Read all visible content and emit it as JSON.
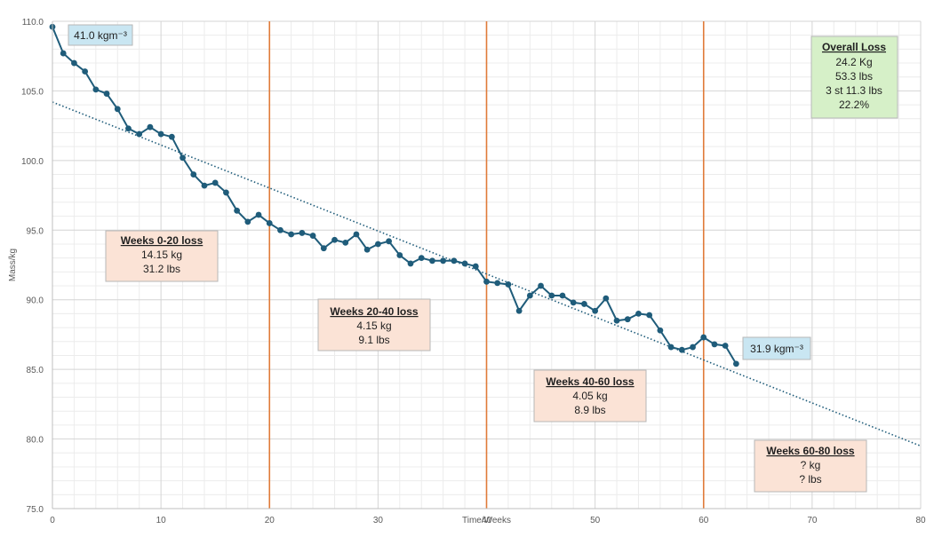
{
  "chart_data": {
    "type": "line",
    "title": "",
    "xlabel": "Time/Weeks",
    "ylabel": "Mass/kg",
    "xlim": [
      0,
      80
    ],
    "ylim": [
      75,
      110
    ],
    "x_ticks": [
      0,
      10,
      20,
      30,
      40,
      50,
      60,
      70,
      80
    ],
    "y_ticks": [
      "75.0",
      "80.0",
      "85.0",
      "90.0",
      "95.0",
      "100.0",
      "105.0",
      "110.0"
    ],
    "grid": true,
    "minor_grid": true,
    "colors": {
      "series": "#1f5c7a",
      "trendline": "#1f5c7a",
      "vertical_lines": "#e07b39",
      "blue_box": "#c9e6f2",
      "green_box": "#d6f0c8",
      "peach_box": "#fbe3d6"
    },
    "series": [
      {
        "x": [
          0,
          1,
          2,
          3,
          4,
          5,
          6,
          7,
          8,
          9,
          10,
          11,
          12,
          13,
          14,
          15,
          16,
          17,
          18,
          19,
          20,
          21,
          22,
          23,
          24,
          25,
          26,
          27,
          28,
          29,
          30,
          31,
          32,
          33,
          34,
          35,
          36,
          37,
          38,
          39,
          40,
          41,
          42,
          43,
          44,
          45,
          46,
          47,
          48,
          49,
          50,
          51,
          52,
          53,
          54,
          55,
          56,
          57,
          58,
          59,
          60,
          61,
          62,
          63
        ],
        "y": [
          109.6,
          107.7,
          107.0,
          106.4,
          105.1,
          104.8,
          103.7,
          102.3,
          101.9,
          102.4,
          101.9,
          101.7,
          100.2,
          99.0,
          98.2,
          98.4,
          97.7,
          96.4,
          95.6,
          96.1,
          95.5,
          95.0,
          94.7,
          94.8,
          94.6,
          93.7,
          94.3,
          94.1,
          94.7,
          93.6,
          94.0,
          94.2,
          93.2,
          92.6,
          93.0,
          92.8,
          92.8,
          92.8,
          92.6,
          92.4,
          91.3,
          91.2,
          91.1,
          89.2,
          90.3,
          91.0,
          90.3,
          90.3,
          89.8,
          89.7,
          89.2,
          90.1,
          88.5,
          88.6,
          89.0,
          88.9,
          87.8,
          86.6,
          86.4,
          86.6,
          87.3,
          86.8,
          86.7,
          85.4
        ]
      }
    ],
    "trendline": {
      "type": "linear",
      "style": "dotted",
      "x": [
        0,
        80
      ],
      "y": [
        104.2,
        79.5
      ]
    },
    "vertical_lines": [
      20,
      40,
      60
    ],
    "annotations": {
      "start_bmi": "41.0 kgm⁻³",
      "end_bmi": "31.9 kgm⁻³",
      "overall": {
        "title": "Overall Loss",
        "lines": [
          "24.2 Kg",
          "53.3 lbs",
          "3 st 11.3 lbs",
          "22.2%"
        ]
      },
      "w0_20": {
        "title": "Weeks 0-20 loss",
        "lines": [
          "14.15 kg",
          "31.2 lbs"
        ]
      },
      "w20_40": {
        "title": "Weeks 20-40 loss",
        "lines": [
          "4.15 kg",
          "9.1 lbs"
        ]
      },
      "w40_60": {
        "title": "Weeks 40-60 loss",
        "lines": [
          "4.05 kg",
          "8.9 lbs"
        ]
      },
      "w60_80": {
        "title": "Weeks 60-80 loss",
        "lines": [
          "? kg",
          "? lbs"
        ]
      }
    }
  }
}
